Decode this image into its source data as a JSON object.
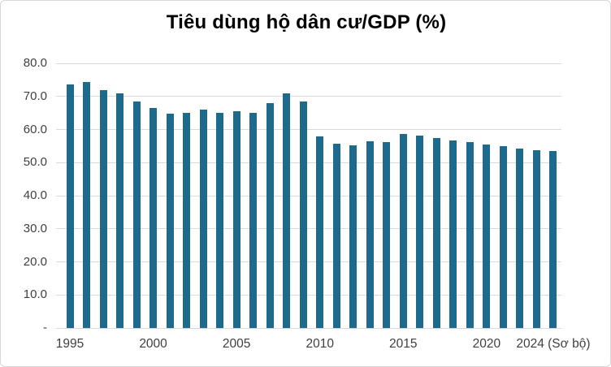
{
  "title": "Tiêu dùng hộ dân cư/GDP (%)",
  "chart_data": {
    "type": "bar",
    "title": "Tiêu dùng hộ dân cư/GDP (%)",
    "xlabel": "",
    "ylabel": "",
    "categories": [
      "1995",
      "1996",
      "1997",
      "1998",
      "1999",
      "2000",
      "2001",
      "2002",
      "2003",
      "2004",
      "2005",
      "2006",
      "2007",
      "2008",
      "2009",
      "2010",
      "2011",
      "2012",
      "2013",
      "2014",
      "2015",
      "2016",
      "2017",
      "2018",
      "2019",
      "2020",
      "2021",
      "2022",
      "2023",
      "2024"
    ],
    "values": [
      73.7,
      74.4,
      71.8,
      70.9,
      68.5,
      66.4,
      64.7,
      65.0,
      66.1,
      65.1,
      65.5,
      65.0,
      68.1,
      71.0,
      68.4,
      58.0,
      55.8,
      55.2,
      56.4,
      56.3,
      58.7,
      58.1,
      57.4,
      56.7,
      56.3,
      55.5,
      55.0,
      54.2,
      53.8,
      53.4
    ],
    "ylim": [
      0,
      80
    ],
    "ytick_interval": 10,
    "ytick_labels": [
      "-",
      "10.0",
      "20.0",
      "30.0",
      "40.0",
      "50.0",
      "60.0",
      "70.0",
      "80.0"
    ],
    "xticks": [
      {
        "year": 1995,
        "label": "1995"
      },
      {
        "year": 2000,
        "label": "2000"
      },
      {
        "year": 2005,
        "label": "2005"
      },
      {
        "year": 2010,
        "label": "2010"
      },
      {
        "year": 2015,
        "label": "2015"
      },
      {
        "year": 2020,
        "label": "2020"
      },
      {
        "year": 2024,
        "label": "2024 (Sơ bộ)"
      }
    ],
    "grid": true,
    "legend": false,
    "colors": {
      "bar": "#1e6a8c",
      "gridline": "#d9d9d9",
      "tick_label": "#3f3f3f",
      "title": "#000000",
      "background": "#ffffff",
      "frame_border": "#d8d8d8"
    }
  }
}
